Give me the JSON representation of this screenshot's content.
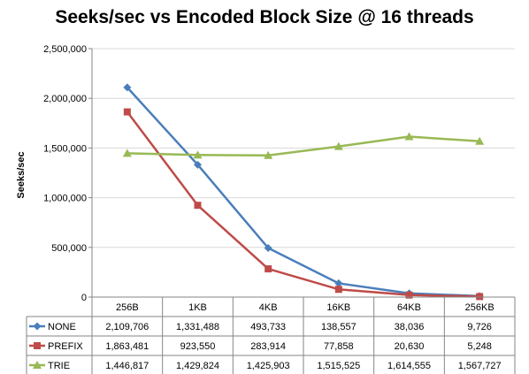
{
  "chart_data": {
    "type": "line",
    "title": "Seeks/sec vs Encoded Block Size @ 16 threads",
    "ylabel": "Seeks/sec",
    "xlabel": "",
    "categories": [
      "256B",
      "1KB",
      "4KB",
      "16KB",
      "64KB",
      "256KB"
    ],
    "ylim": [
      0,
      2500000
    ],
    "yticks": [
      "0",
      "500,000",
      "1,000,000",
      "1,500,000",
      "2,000,000",
      "2,500,000"
    ],
    "ytick_values": [
      0,
      500000,
      1000000,
      1500000,
      2000000,
      2500000
    ],
    "grid": true,
    "legend": "data-table",
    "series": [
      {
        "name": "NONE",
        "color": "#4a7ebb",
        "marker": "diamond",
        "values": [
          2109706,
          1331488,
          493733,
          138557,
          38036,
          9726
        ],
        "labels": [
          "2,109,706",
          "1,331,488",
          "493,733",
          "138,557",
          "38,036",
          "9,726"
        ]
      },
      {
        "name": "PREFIX",
        "color": "#be4b48",
        "marker": "square",
        "values": [
          1863481,
          923550,
          283914,
          77858,
          20630,
          5248
        ],
        "labels": [
          "1,863,481",
          "923,550",
          "283,914",
          "77,858",
          "20,630",
          "5,248"
        ]
      },
      {
        "name": "TRIE",
        "color": "#98b954",
        "marker": "triangle",
        "values": [
          1446817,
          1429824,
          1425903,
          1515525,
          1614555,
          1567727
        ],
        "labels": [
          "1,446,817",
          "1,429,824",
          "1,425,903",
          "1,515,525",
          "1,614,555",
          "1,567,727"
        ]
      }
    ]
  }
}
